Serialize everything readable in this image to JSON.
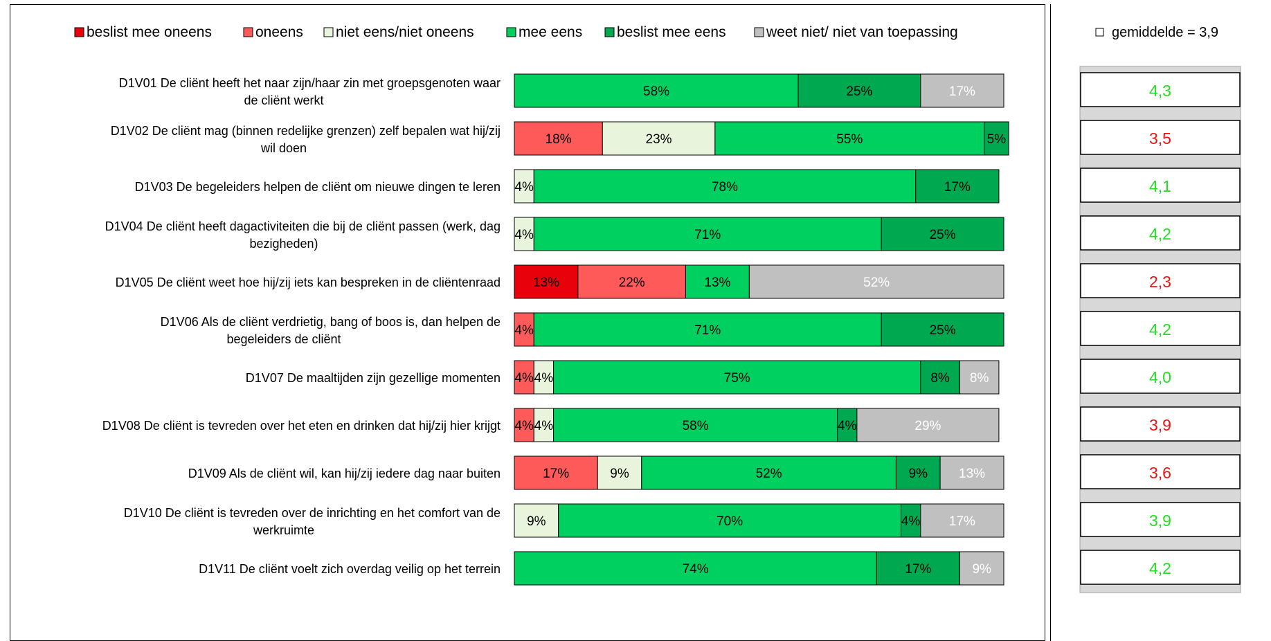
{
  "chart_data": {
    "type": "bar",
    "stacked": true,
    "orientation": "horizontal",
    "legend_placement": "top",
    "legend": [
      {
        "label": "beslist mee oneens",
        "color": "#e8000b"
      },
      {
        "label": "oneens",
        "color": "#ff5a5a"
      },
      {
        "label": "niet eens/niet oneens",
        "color": "#e8f5dc"
      },
      {
        "label": "mee eens",
        "color": "#00d060"
      },
      {
        "label": "beslist mee eens",
        "color": "#00a850"
      },
      {
        "label": "weet niet/ niet van toepassing",
        "color": "#c0c0c0"
      }
    ],
    "rows": [
      {
        "code": "D1V01",
        "text": "De cliënt heeft het naar zijn/haar zin met groepsgenoten waar",
        "text2": "de cliënt werkt",
        "values": [
          0,
          0,
          0,
          58,
          25,
          17
        ],
        "labels": [
          "",
          "",
          "",
          "58%",
          "25%",
          "17%"
        ],
        "avg": "4,3",
        "avg_color": "#22dd22"
      },
      {
        "code": "D1V02",
        "text": "De cliënt mag (binnen redelijke grenzen) zelf bepalen wat hij/zij",
        "text2": "wil doen",
        "values": [
          0,
          18,
          23,
          55,
          5,
          0
        ],
        "labels": [
          "",
          "18%",
          "23%",
          "55%",
          "5%",
          ""
        ],
        "avg": "3,5",
        "avg_color": "#ee1111"
      },
      {
        "code": "D1V03",
        "text": "De begeleiders helpen de cliënt om nieuwe dingen te leren",
        "text2": "",
        "values": [
          0,
          0,
          4,
          78,
          17,
          0
        ],
        "labels": [
          "",
          "",
          "4%",
          "78%",
          "17%",
          ""
        ],
        "avg": "4,1",
        "avg_color": "#22dd22"
      },
      {
        "code": "D1V04",
        "text": "De cliënt heeft dagactiviteiten die bij de cliënt passen (werk, dag",
        "text2": "bezigheden)",
        "values": [
          0,
          0,
          4,
          71,
          25,
          0
        ],
        "labels": [
          "",
          "",
          "4%",
          "71%",
          "25%",
          ""
        ],
        "avg": "4,2",
        "avg_color": "#22dd22"
      },
      {
        "code": "D1V05",
        "text": "De cliënt weet hoe hij/zij iets kan bespreken in de cliëntenraad",
        "text2": "",
        "values": [
          13,
          22,
          0,
          13,
          0,
          52
        ],
        "labels": [
          "13%",
          "22%",
          "",
          "13%",
          "",
          "52%"
        ],
        "avg": "2,3",
        "avg_color": "#ee1111"
      },
      {
        "code": "D1V06",
        "text": "Als de cliënt verdrietig, bang of boos is, dan helpen de",
        "text2": "begeleiders de cliënt",
        "values": [
          0,
          4,
          0,
          71,
          25,
          0
        ],
        "labels": [
          "",
          "4%",
          "",
          "71%",
          "25%",
          ""
        ],
        "avg": "4,2",
        "avg_color": "#22dd22"
      },
      {
        "code": "D1V07",
        "text": "De maaltijden zijn gezellige momenten",
        "text2": "",
        "values": [
          0,
          4,
          4,
          75,
          8,
          8
        ],
        "labels": [
          "",
          "4%",
          "4%",
          "75%",
          "8%",
          "8%"
        ],
        "avg": "4,0",
        "avg_color": "#22dd22"
      },
      {
        "code": "D1V08",
        "text": "De cliënt is tevreden over het eten en drinken dat hij/zij hier krijgt",
        "text2": "",
        "values": [
          0,
          4,
          4,
          58,
          4,
          29
        ],
        "labels": [
          "",
          "4%",
          "4%",
          "58%",
          "4%",
          "29%"
        ],
        "avg": "3,9",
        "avg_color": "#ee1111"
      },
      {
        "code": "D1V09",
        "text": "Als de cliënt wil, kan hij/zij iedere dag naar buiten",
        "text2": "",
        "values": [
          0,
          17,
          9,
          52,
          9,
          13
        ],
        "labels": [
          "",
          "17%",
          "9%",
          "52%",
          "9%",
          "13%"
        ],
        "avg": "3,6",
        "avg_color": "#ee1111"
      },
      {
        "code": "D1V10",
        "text": "De cliënt is tevreden over de inrichting en het comfort van de",
        "text2": "werkruimte",
        "values": [
          0,
          0,
          9,
          70,
          4,
          17
        ],
        "labels": [
          "",
          "",
          "9%",
          "70%",
          "4%",
          "17%"
        ],
        "avg": "3,9",
        "avg_color": "#22dd22"
      },
      {
        "code": "D1V11",
        "text": "De cliënt voelt zich overdag veilig op het terrein",
        "text2": "",
        "values": [
          0,
          0,
          0,
          74,
          17,
          9
        ],
        "labels": [
          "",
          "",
          "",
          "74%",
          "17%",
          "9%"
        ],
        "avg": "4,2",
        "avg_color": "#22dd22"
      }
    ],
    "average_legend": "gemiddelde = 3,9",
    "xlim": [
      0,
      100
    ]
  }
}
